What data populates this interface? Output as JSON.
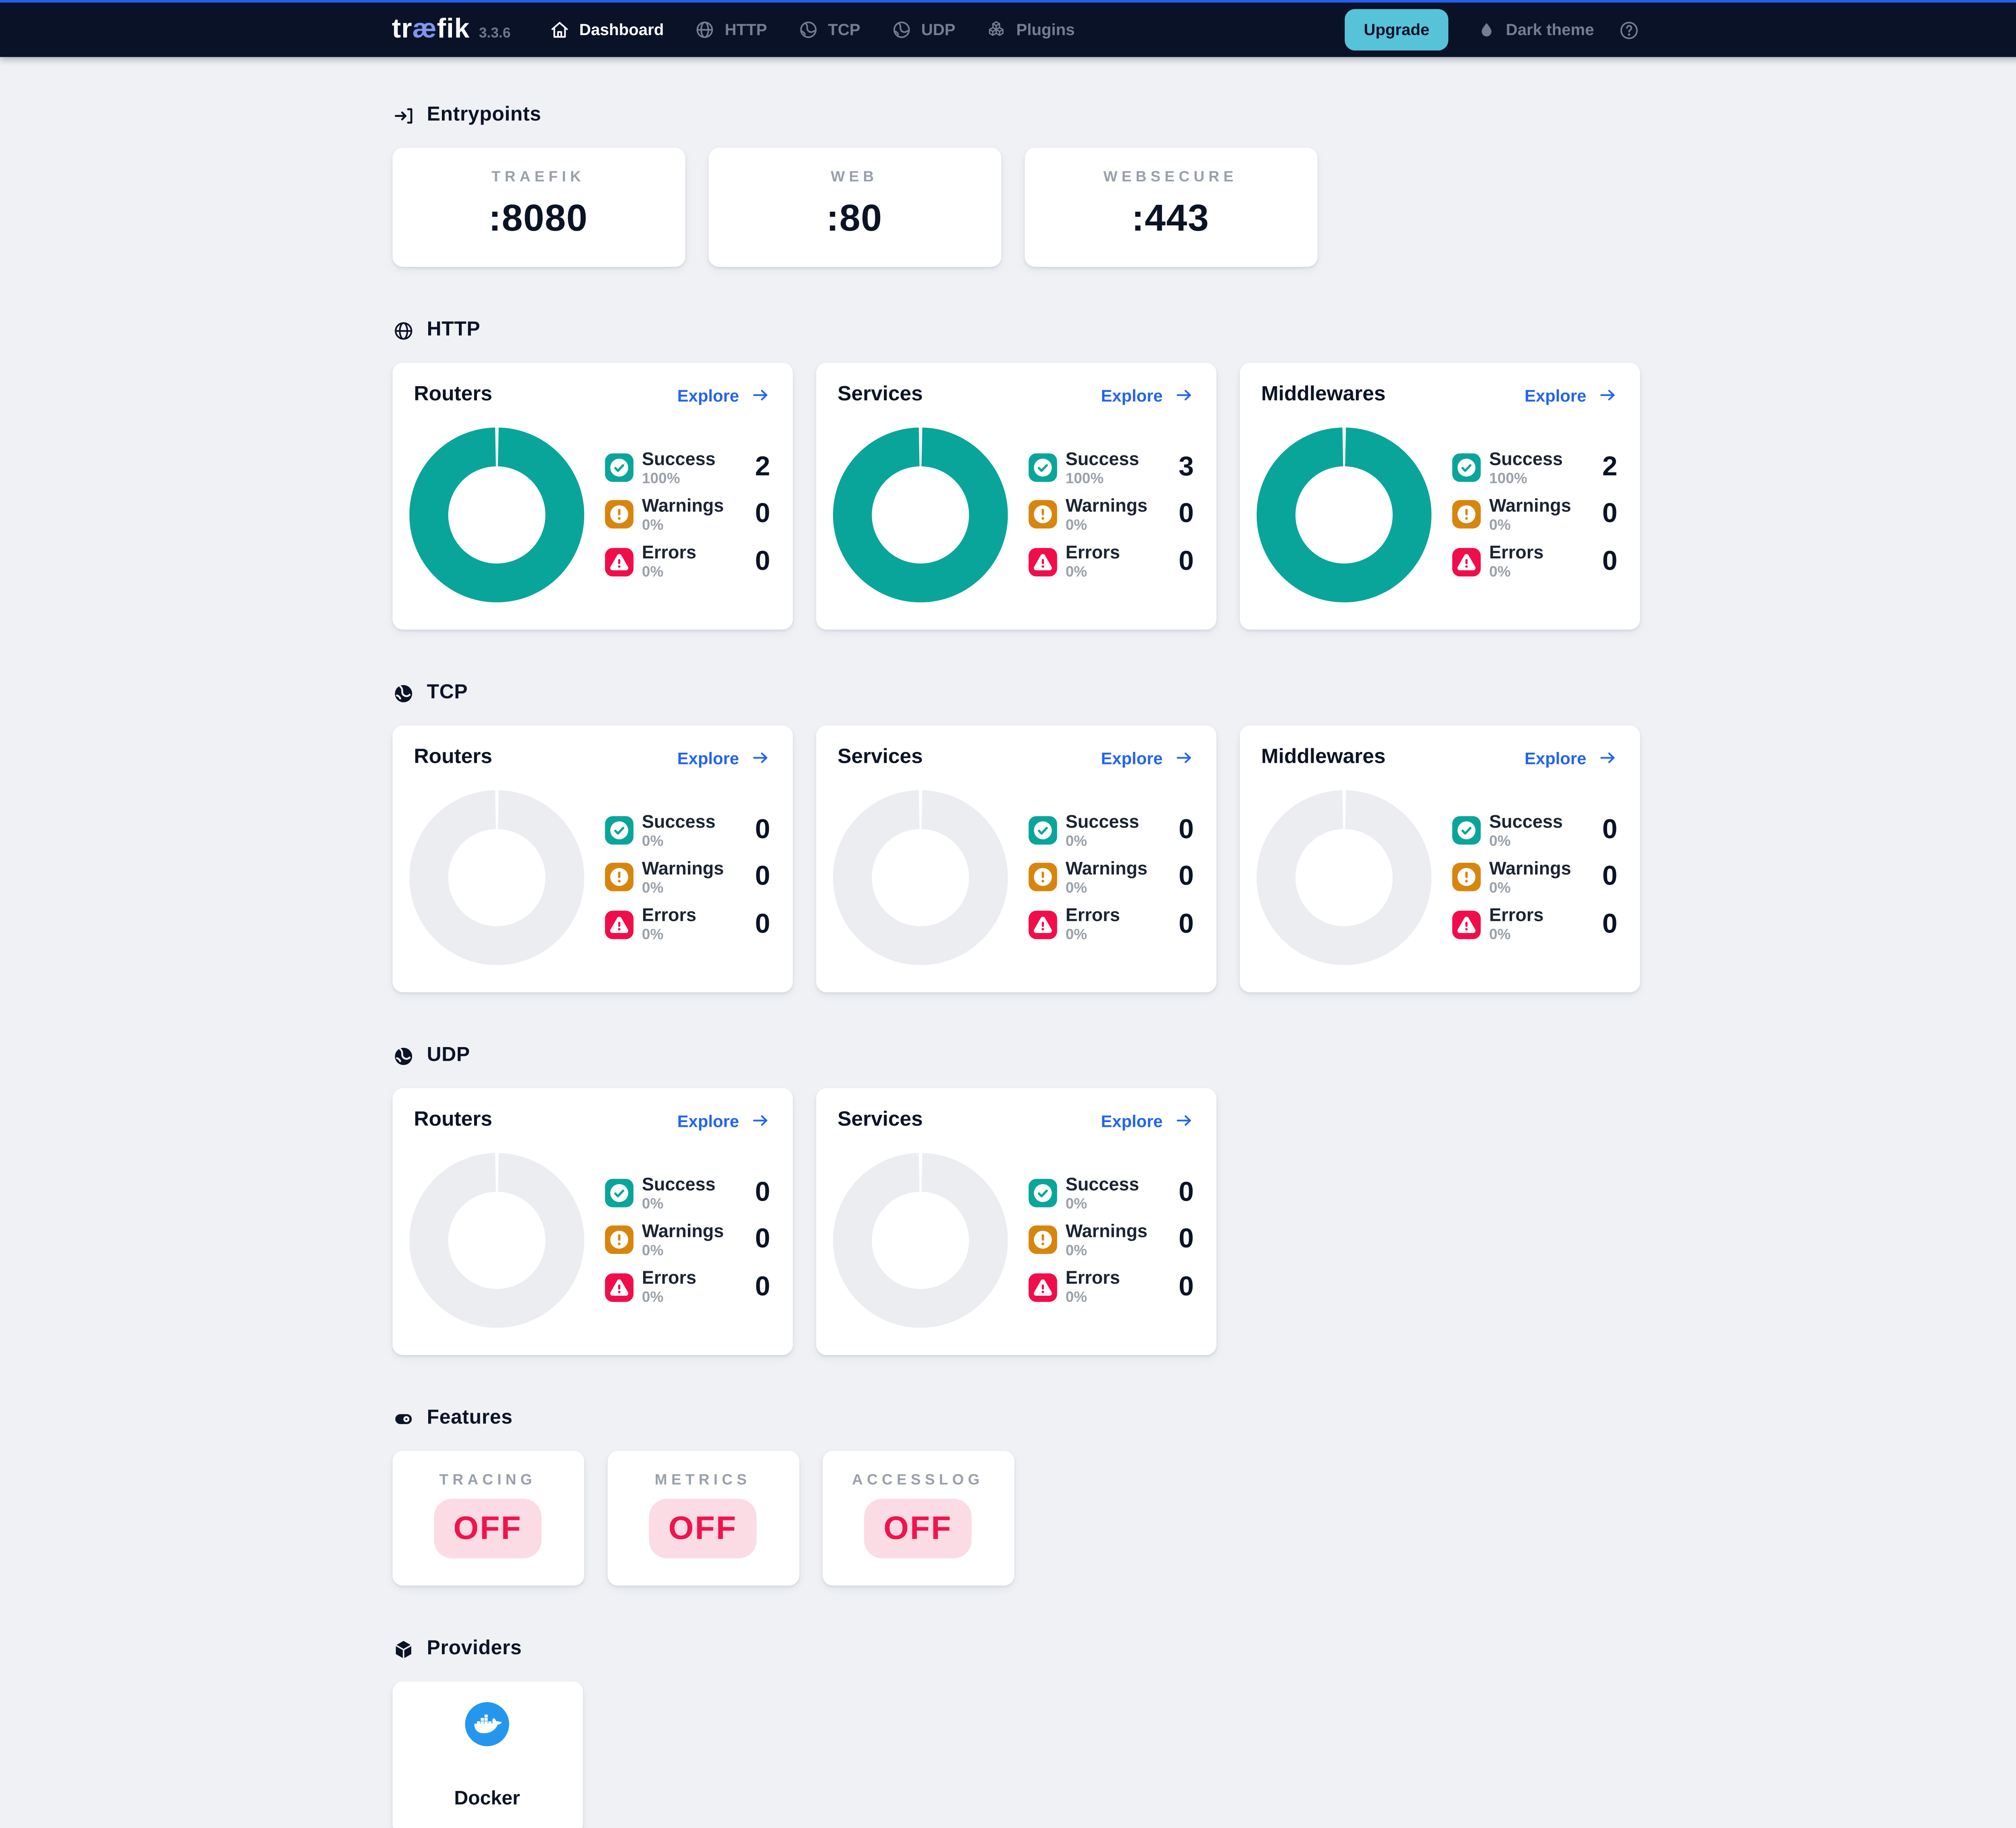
{
  "navbar": {
    "logo_prefix": "tr",
    "logo_ae": "æ",
    "logo_suffix": "fik",
    "version": "3.3.6",
    "items": [
      {
        "label": "Dashboard",
        "icon": "home-icon",
        "active": true
      },
      {
        "label": "HTTP",
        "icon": "globe-icon",
        "active": false
      },
      {
        "label": "TCP",
        "icon": "ball-icon",
        "active": false
      },
      {
        "label": "UDP",
        "icon": "ball-icon",
        "active": false
      },
      {
        "label": "Plugins",
        "icon": "cubes-icon",
        "active": false
      }
    ],
    "upgrade_label": "Upgrade",
    "theme_toggle_label": "Dark theme",
    "theme_icon": "droplet-icon",
    "help_icon": "help-icon"
  },
  "stat_icons": {
    "success": "check-circle-icon",
    "warning": "exclamation-circle-icon",
    "error": "alert-triangle-icon"
  },
  "sections": [
    {
      "id": "entrypoints",
      "title": "Entrypoints",
      "icon": "enter-icon",
      "type": "port",
      "cards": [
        {
          "label": "TRAEFIK",
          "value": ":8080"
        },
        {
          "label": "WEB",
          "value": ":80"
        },
        {
          "label": "WEBSECURE",
          "value": ":443"
        }
      ]
    },
    {
      "id": "http",
      "title": "HTTP",
      "icon": "globe-icon",
      "type": "donut",
      "cards": [
        {
          "title": "Routers",
          "explore_label": "Explore",
          "donut_percent": 100,
          "stats": [
            {
              "kind": "success",
              "label": "Success",
              "percent": "100%",
              "value": "2"
            },
            {
              "kind": "warning",
              "label": "Warnings",
              "percent": "0%",
              "value": "0"
            },
            {
              "kind": "error",
              "label": "Errors",
              "percent": "0%",
              "value": "0"
            }
          ]
        },
        {
          "title": "Services",
          "explore_label": "Explore",
          "donut_percent": 100,
          "stats": [
            {
              "kind": "success",
              "label": "Success",
              "percent": "100%",
              "value": "3"
            },
            {
              "kind": "warning",
              "label": "Warnings",
              "percent": "0%",
              "value": "0"
            },
            {
              "kind": "error",
              "label": "Errors",
              "percent": "0%",
              "value": "0"
            }
          ]
        },
        {
          "title": "Middlewares",
          "explore_label": "Explore",
          "donut_percent": 100,
          "stats": [
            {
              "kind": "success",
              "label": "Success",
              "percent": "100%",
              "value": "2"
            },
            {
              "kind": "warning",
              "label": "Warnings",
              "percent": "0%",
              "value": "0"
            },
            {
              "kind": "error",
              "label": "Errors",
              "percent": "0%",
              "value": "0"
            }
          ]
        }
      ]
    },
    {
      "id": "tcp",
      "title": "TCP",
      "icon": "ball-icon",
      "type": "donut",
      "cards": [
        {
          "title": "Routers",
          "explore_label": "Explore",
          "donut_percent": 0,
          "stats": [
            {
              "kind": "success",
              "label": "Success",
              "percent": "0%",
              "value": "0"
            },
            {
              "kind": "warning",
              "label": "Warnings",
              "percent": "0%",
              "value": "0"
            },
            {
              "kind": "error",
              "label": "Errors",
              "percent": "0%",
              "value": "0"
            }
          ]
        },
        {
          "title": "Services",
          "explore_label": "Explore",
          "donut_percent": 0,
          "stats": [
            {
              "kind": "success",
              "label": "Success",
              "percent": "0%",
              "value": "0"
            },
            {
              "kind": "warning",
              "label": "Warnings",
              "percent": "0%",
              "value": "0"
            },
            {
              "kind": "error",
              "label": "Errors",
              "percent": "0%",
              "value": "0"
            }
          ]
        },
        {
          "title": "Middlewares",
          "explore_label": "Explore",
          "donut_percent": 0,
          "stats": [
            {
              "kind": "success",
              "label": "Success",
              "percent": "0%",
              "value": "0"
            },
            {
              "kind": "warning",
              "label": "Warnings",
              "percent": "0%",
              "value": "0"
            },
            {
              "kind": "error",
              "label": "Errors",
              "percent": "0%",
              "value": "0"
            }
          ]
        }
      ]
    },
    {
      "id": "udp",
      "title": "UDP",
      "icon": "ball-icon",
      "type": "donut",
      "cards": [
        {
          "title": "Routers",
          "explore_label": "Explore",
          "donut_percent": 0,
          "stats": [
            {
              "kind": "success",
              "label": "Success",
              "percent": "0%",
              "value": "0"
            },
            {
              "kind": "warning",
              "label": "Warnings",
              "percent": "0%",
              "value": "0"
            },
            {
              "kind": "error",
              "label": "Errors",
              "percent": "0%",
              "value": "0"
            }
          ]
        },
        {
          "title": "Services",
          "explore_label": "Explore",
          "donut_percent": 0,
          "stats": [
            {
              "kind": "success",
              "label": "Success",
              "percent": "0%",
              "value": "0"
            },
            {
              "kind": "warning",
              "label": "Warnings",
              "percent": "0%",
              "value": "0"
            },
            {
              "kind": "error",
              "label": "Errors",
              "percent": "0%",
              "value": "0"
            }
          ]
        }
      ]
    },
    {
      "id": "features",
      "title": "Features",
      "icon": "toggle-icon",
      "type": "feature",
      "cards": [
        {
          "label": "TRACING",
          "value": "OFF"
        },
        {
          "label": "METRICS",
          "value": "OFF"
        },
        {
          "label": "ACCESSLOG",
          "value": "OFF"
        }
      ]
    },
    {
      "id": "providers",
      "title": "Providers",
      "icon": "cube-icon",
      "type": "provider",
      "cards": [
        {
          "label": "Docker",
          "icon": "docker-icon"
        }
      ]
    }
  ],
  "colors": {
    "accent_blue": "#2364f0",
    "success_teal": "#0aa59a",
    "warning_orange": "#d8850e",
    "error_red": "#f10d49",
    "off_red": "#f0134d",
    "off_bg": "#fbdbe4",
    "empty_donut": "#ebedf0",
    "navbar_bg": "#0a1228",
    "navbar_border": "#2360ef",
    "upgrade_bg": "#57c3d9",
    "docker_blue": "#2496ed",
    "page_bg": "#eff1f5"
  }
}
